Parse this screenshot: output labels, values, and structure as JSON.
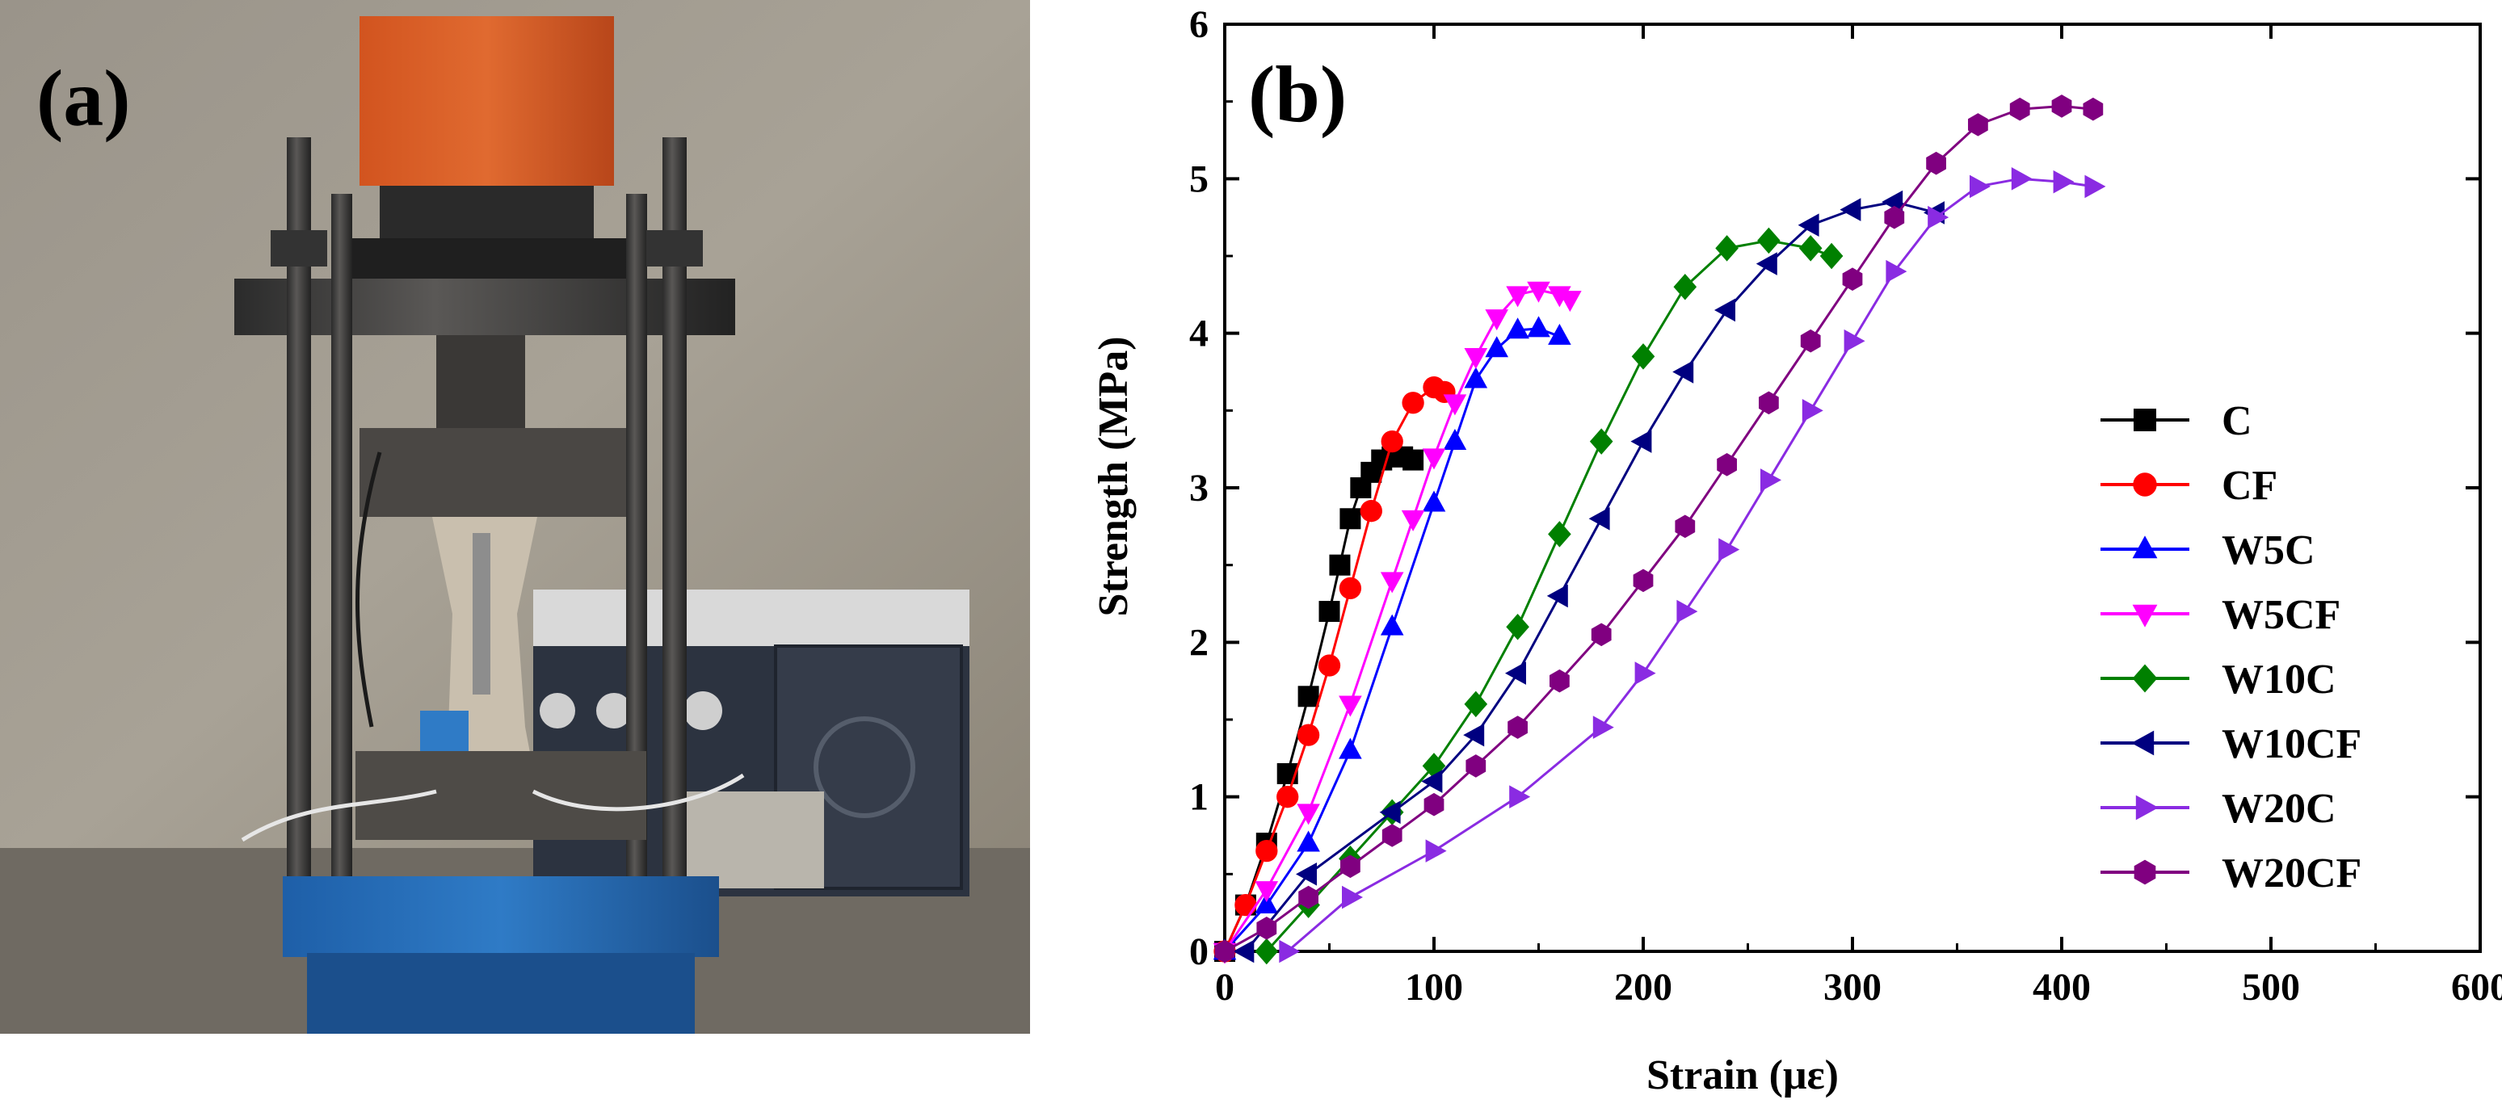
{
  "photo": {
    "panel_label": "(a)",
    "description_icon": "testing-machine-photo"
  },
  "chart_data": {
    "type": "line",
    "panel_label": "(b)",
    "xlabel": "Strain (με)",
    "ylabel": "Strength (MPa)",
    "xlim": [
      0,
      600
    ],
    "ylim": [
      0,
      6
    ],
    "xticks": [
      0,
      100,
      200,
      300,
      400,
      500,
      600
    ],
    "yticks": [
      0,
      1,
      2,
      3,
      4,
      5,
      6
    ],
    "grid": false,
    "legend_position": "right",
    "series": [
      {
        "name": "C",
        "color": "#000000",
        "marker": "square",
        "x": [
          0,
          10,
          20,
          30,
          40,
          50,
          55,
          60,
          65,
          70,
          75,
          80,
          85,
          90
        ],
        "y": [
          0,
          0.3,
          0.7,
          1.15,
          1.65,
          2.2,
          2.5,
          2.8,
          3.0,
          3.1,
          3.18,
          3.2,
          3.2,
          3.18
        ]
      },
      {
        "name": "CF",
        "color": "#ff0000",
        "marker": "circle",
        "x": [
          0,
          10,
          20,
          30,
          40,
          50,
          60,
          70,
          80,
          90,
          100,
          105
        ],
        "y": [
          0,
          0.3,
          0.65,
          1.0,
          1.4,
          1.85,
          2.35,
          2.85,
          3.3,
          3.55,
          3.65,
          3.62
        ]
      },
      {
        "name": "W5C",
        "color": "#0000ff",
        "marker": "triangle-up",
        "x": [
          0,
          20,
          40,
          60,
          80,
          100,
          110,
          120,
          130,
          140,
          150,
          160
        ],
        "y": [
          0,
          0.3,
          0.7,
          1.3,
          2.1,
          2.9,
          3.3,
          3.7,
          3.9,
          4.02,
          4.03,
          3.98
        ]
      },
      {
        "name": "W5CF",
        "color": "#ff00ff",
        "marker": "triangle-down",
        "x": [
          0,
          20,
          40,
          60,
          80,
          90,
          100,
          110,
          120,
          130,
          140,
          150,
          160,
          165
        ],
        "y": [
          0,
          0.4,
          0.9,
          1.6,
          2.4,
          2.8,
          3.2,
          3.55,
          3.85,
          4.1,
          4.25,
          4.28,
          4.25,
          4.22
        ]
      },
      {
        "name": "W10C",
        "color": "#008000",
        "marker": "diamond",
        "x": [
          20,
          40,
          60,
          80,
          100,
          120,
          140,
          160,
          180,
          200,
          220,
          240,
          260,
          280,
          290
        ],
        "y": [
          0,
          0.3,
          0.6,
          0.9,
          1.2,
          1.6,
          2.1,
          2.7,
          3.3,
          3.85,
          4.3,
          4.55,
          4.6,
          4.55,
          4.5
        ]
      },
      {
        "name": "W10CF",
        "color": "#000080",
        "marker": "triangle-left",
        "x": [
          10,
          40,
          80,
          100,
          120,
          140,
          160,
          180,
          200,
          220,
          240,
          260,
          280,
          300,
          320,
          340
        ],
        "y": [
          0,
          0.5,
          0.9,
          1.1,
          1.4,
          1.8,
          2.3,
          2.8,
          3.3,
          3.75,
          4.15,
          4.45,
          4.7,
          4.8,
          4.85,
          4.78
        ]
      },
      {
        "name": "W20C",
        "color": "#8a2be2",
        "marker": "triangle-right",
        "x": [
          30,
          60,
          100,
          140,
          180,
          200,
          220,
          240,
          260,
          280,
          300,
          320,
          340,
          360,
          380,
          400,
          415
        ],
        "y": [
          0,
          0.35,
          0.65,
          1.0,
          1.45,
          1.8,
          2.2,
          2.6,
          3.05,
          3.5,
          3.95,
          4.4,
          4.75,
          4.95,
          5.0,
          4.98,
          4.95
        ]
      },
      {
        "name": "W20CF",
        "color": "#800080",
        "marker": "hexagon",
        "x": [
          0,
          20,
          40,
          60,
          80,
          100,
          120,
          140,
          160,
          180,
          200,
          220,
          240,
          260,
          280,
          300,
          320,
          340,
          360,
          380,
          400,
          415
        ],
        "y": [
          0,
          0.15,
          0.35,
          0.55,
          0.75,
          0.95,
          1.2,
          1.45,
          1.75,
          2.05,
          2.4,
          2.75,
          3.15,
          3.55,
          3.95,
          4.35,
          4.75,
          5.1,
          5.35,
          5.45,
          5.47,
          5.45
        ]
      }
    ]
  }
}
